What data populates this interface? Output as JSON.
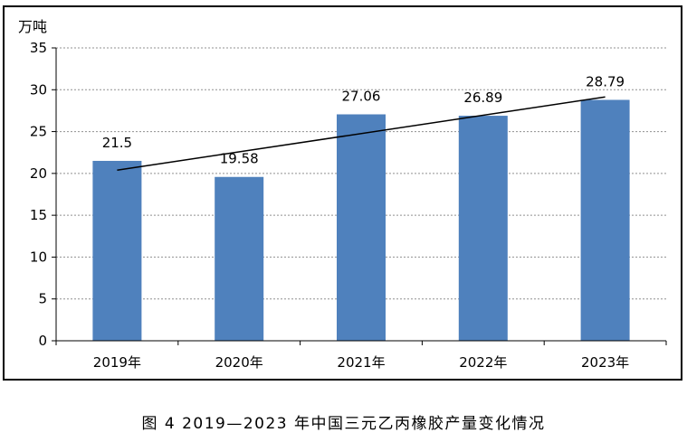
{
  "caption": "图 4  2019—2023 年中国三元乙丙橡胶产量变化情况",
  "chart_data": {
    "type": "bar",
    "unit_label": "万吨",
    "categories": [
      "2019年",
      "2020年",
      "2021年",
      "2022年",
      "2023年"
    ],
    "values": [
      21.5,
      19.58,
      27.06,
      26.89,
      28.79
    ],
    "value_labels": [
      "21.5",
      "19.58",
      "27.06",
      "26.89",
      "28.79"
    ],
    "y_ticks": [
      0,
      5,
      10,
      15,
      20,
      25,
      30,
      35
    ],
    "ylim": [
      0,
      35
    ],
    "grid": true,
    "trendline": true,
    "colors": {
      "bar": "#4f81bd",
      "trendline": "#000000",
      "grid": "#909090"
    }
  }
}
